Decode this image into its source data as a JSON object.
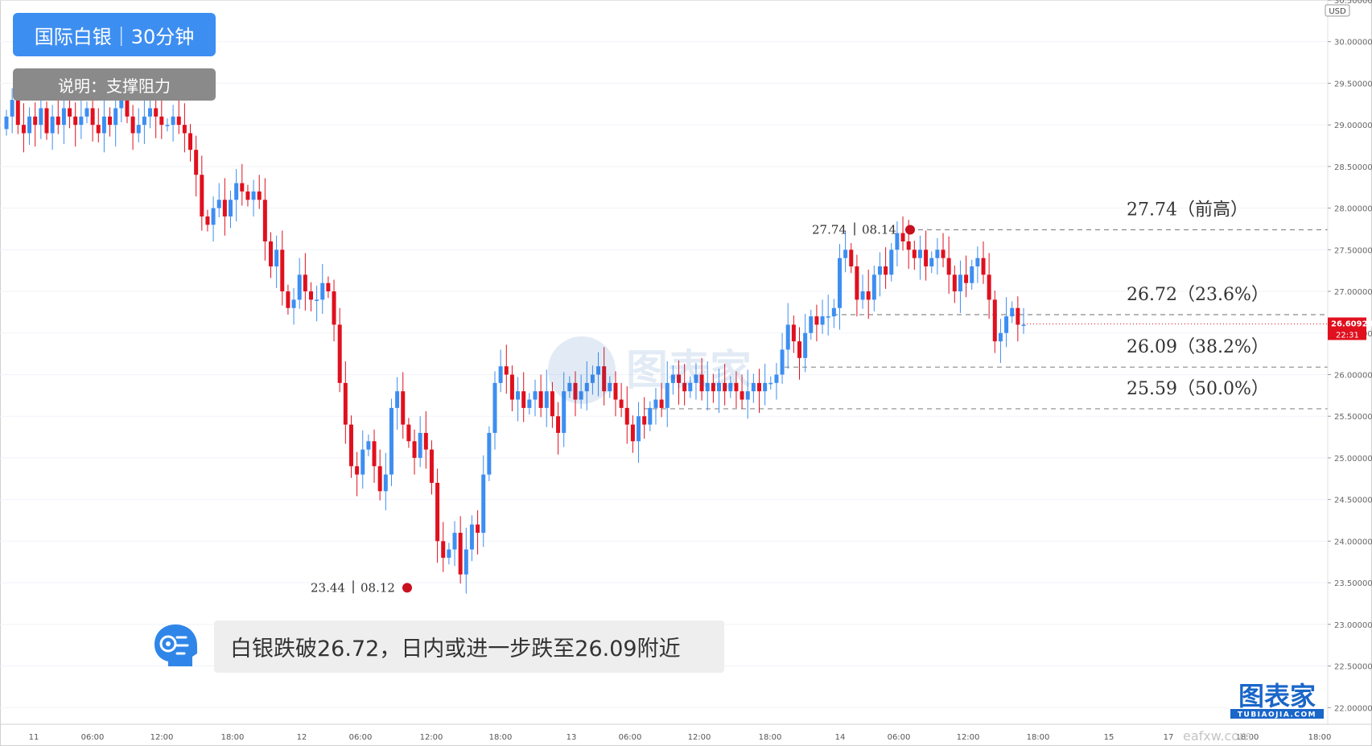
{
  "header": {
    "title": "国际白银｜30分钟",
    "subtitle": "说明：支撑阻力"
  },
  "note": {
    "text": "白银跌破26.72，日内或进一步跌至26.09附近"
  },
  "brand": {
    "logo_text": "图表家",
    "logo_sub": "TUBIAOJIA.COM",
    "watermark": "图表家",
    "site": "eafxw.com"
  },
  "colors": {
    "up": "#3d8ef1",
    "down": "#e0101e",
    "grid": "#f0f3fa",
    "level_line": "#8a8a8a",
    "price_tag": "#e0101e",
    "marker": "#c8101e"
  },
  "chart_data": {
    "type": "candlestick",
    "currency": "USD",
    "ylim": [
      21.8,
      30.5
    ],
    "y_ticks": [
      "30.50000",
      "30.00000",
      "29.50000",
      "29.00000",
      "28.50000",
      "28.00000",
      "27.50000",
      "27.00000",
      "26.50000",
      "26.00000",
      "25.50000",
      "25.00000",
      "24.50000",
      "24.00000",
      "23.50000",
      "23.00000",
      "22.50000",
      "22.00000"
    ],
    "x_ticks": [
      "11",
      "06:00",
      "12:00",
      "18:00",
      "12",
      "06:00",
      "12:00",
      "18:00",
      "13",
      "06:00",
      "12:00",
      "18:00",
      "14",
      "06:00",
      "12:00",
      "18:00",
      "15",
      "17",
      "18:00",
      "18:00"
    ],
    "current_price": "26.60923",
    "countdown": "22:31",
    "levels": [
      {
        "value": 27.74,
        "label": "27.74（前高）"
      },
      {
        "value": 26.72,
        "label": "26.72（23.6%）"
      },
      {
        "value": 26.09,
        "label": "26.09（38.2%）"
      },
      {
        "value": 25.59,
        "label": "25.59（50.0%）"
      }
    ],
    "annotations": [
      {
        "price": "23.44",
        "date": "08.12"
      },
      {
        "price": "27.74",
        "date": "08.14"
      }
    ],
    "closes": [
      29.1,
      29.3,
      29.0,
      28.9,
      29.1,
      29.0,
      29.2,
      28.9,
      29.1,
      29.0,
      29.2,
      29.1,
      29.0,
      29.1,
      29.2,
      29.0,
      28.9,
      29.1,
      29.0,
      29.2,
      29.3,
      29.1,
      28.9,
      29.0,
      29.1,
      29.2,
      29.1,
      29.0,
      29.0,
      29.1,
      29.0,
      28.9,
      28.7,
      28.4,
      27.9,
      27.8,
      28.0,
      28.1,
      27.9,
      28.1,
      28.3,
      28.2,
      28.1,
      28.2,
      28.1,
      27.6,
      27.3,
      27.5,
      27.0,
      26.8,
      26.9,
      27.2,
      27.0,
      26.9,
      26.9,
      27.1,
      27.0,
      26.6,
      25.9,
      25.4,
      24.9,
      24.8,
      25.1,
      25.2,
      24.9,
      24.6,
      24.8,
      25.6,
      25.8,
      25.4,
      25.2,
      25.0,
      25.3,
      25.1,
      24.7,
      24.0,
      23.8,
      23.9,
      24.1,
      23.6,
      23.9,
      24.2,
      24.1,
      24.8,
      25.3,
      25.9,
      26.1,
      26.0,
      25.7,
      25.8,
      25.6,
      25.7,
      25.8,
      25.6,
      25.8,
      25.5,
      25.3,
      25.8,
      25.9,
      25.7,
      25.8,
      25.9,
      26.0,
      26.1,
      25.8,
      25.9,
      25.7,
      25.6,
      25.4,
      25.2,
      25.5,
      25.4,
      25.6,
      25.7,
      25.6,
      25.9,
      26.0,
      25.9,
      25.8,
      25.9,
      26.0,
      25.8,
      25.9,
      25.8,
      25.9,
      25.8,
      25.9,
      25.8,
      25.7,
      25.8,
      25.9,
      25.8,
      25.9,
      25.9,
      26.0,
      26.3,
      26.6,
      26.4,
      26.2,
      26.5,
      26.7,
      26.6,
      26.7,
      26.7,
      26.8,
      27.4,
      27.5,
      27.3,
      26.9,
      27.0,
      26.9,
      27.2,
      27.3,
      27.2,
      27.5,
      27.7,
      27.6,
      27.5,
      27.4,
      27.5,
      27.3,
      27.4,
      27.5,
      27.4,
      27.2,
      27.0,
      27.2,
      27.1,
      27.3,
      27.4,
      27.2,
      26.9,
      26.4,
      26.5,
      26.7,
      26.8,
      26.6,
      26.6
    ],
    "series": [
      {
        "name": "国际白银",
        "values_key": "closes"
      }
    ]
  }
}
